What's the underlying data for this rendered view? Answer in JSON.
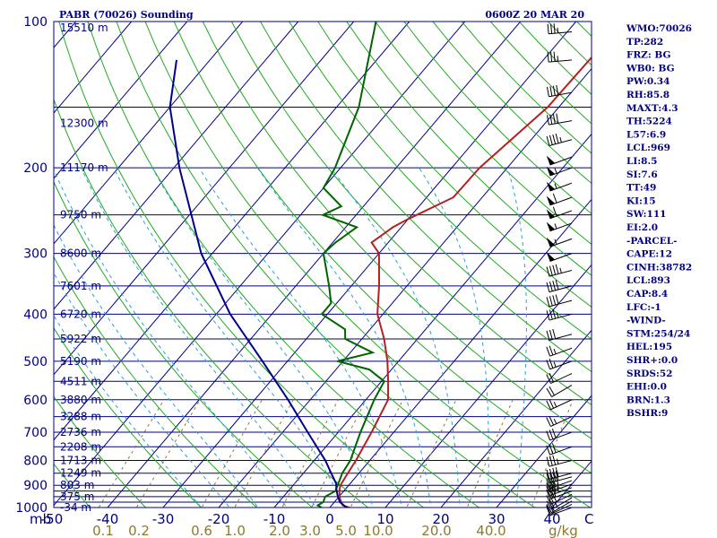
{
  "chart_data": {
    "type": "line",
    "chart_kind": "skew-T log-P sounding",
    "title": "PABR (70026) Sounding",
    "time": "0600Z 20 MAR 20",
    "y_unit": "mb",
    "x_unit": "°C",
    "mixing_ratio_unit": "g/kg",
    "pressure_range": [
      1000,
      100
    ],
    "temp_range_at_1000mb": [
      -50,
      50
    ],
    "pressure_ticks": [
      100,
      200,
      300,
      400,
      500,
      600,
      700,
      800,
      900,
      1000
    ],
    "temp_ticks": [
      -50,
      -40,
      -30,
      -20,
      -10,
      0,
      10,
      20,
      30,
      40
    ],
    "mixing_ratio_labels": [
      "0.1",
      "0.2",
      "0.6",
      "1.0",
      "2.0",
      "3.0",
      "5.0",
      "10.0",
      "20.0",
      "40.0"
    ],
    "mixing_ratio_values": [
      0.1,
      0.2,
      0.6,
      1.0,
      2.0,
      3.0,
      5.0,
      10.0,
      20.0,
      40.0
    ],
    "levels": [
      {
        "p": 103,
        "h": "15510 m"
      },
      {
        "p": 162,
        "h": "12300 m"
      },
      {
        "p": 200,
        "h": "11170 m"
      },
      {
        "p": 250,
        "h": "9750 m"
      },
      {
        "p": 300,
        "h": "8600 m"
      },
      {
        "p": 350,
        "h": "7601 m"
      },
      {
        "p": 400,
        "h": "6720 m"
      },
      {
        "p": 450,
        "h": "5922 m"
      },
      {
        "p": 500,
        "h": "5190 m"
      },
      {
        "p": 550,
        "h": "4511 m"
      },
      {
        "p": 600,
        "h": "3880 m"
      },
      {
        "p": 650,
        "h": "3288 m"
      },
      {
        "p": 700,
        "h": "2736 m"
      },
      {
        "p": 750,
        "h": "2208 m"
      },
      {
        "p": 800,
        "h": "1713 m"
      },
      {
        "p": 850,
        "h": "1249 m"
      },
      {
        "p": 900,
        "h": "803 m"
      },
      {
        "p": 950,
        "h": "375 m"
      },
      {
        "p": 1000,
        "h": "-34 m"
      }
    ],
    "series": [
      {
        "name": "Temperature",
        "color": "#b22222",
        "points": [
          [
            1005,
            4.0
          ],
          [
            1000,
            3.5
          ],
          [
            990,
            2.0
          ],
          [
            960,
            0.5
          ],
          [
            925,
            -0.8
          ],
          [
            900,
            -1.5
          ],
          [
            850,
            -2.0
          ],
          [
            800,
            -2.5
          ],
          [
            700,
            -4.0
          ],
          [
            600,
            -6.0
          ],
          [
            550,
            -8.8
          ],
          [
            500,
            -12.0
          ],
          [
            450,
            -16.0
          ],
          [
            400,
            -21.0
          ],
          [
            350,
            -25.0
          ],
          [
            300,
            -30.0
          ],
          [
            285,
            -33.0
          ],
          [
            265,
            -31.5
          ],
          [
            255,
            -30.0
          ],
          [
            230,
            -25.2
          ],
          [
            200,
            -25.0
          ],
          [
            150,
            -22.0
          ],
          [
            100,
            -21.5
          ]
        ]
      },
      {
        "name": "Dewpoint",
        "color": "#006400",
        "points": [
          [
            1000,
            -1.5
          ],
          [
            990,
            -2.5
          ],
          [
            975,
            -2.0
          ],
          [
            950,
            -2.5
          ],
          [
            925,
            -1.5
          ],
          [
            900,
            -2.0
          ],
          [
            850,
            -3.0
          ],
          [
            800,
            -3.5
          ],
          [
            700,
            -6.0
          ],
          [
            600,
            -8.5
          ],
          [
            550,
            -9.5
          ],
          [
            520,
            -14.0
          ],
          [
            500,
            -21.0
          ],
          [
            480,
            -16.0
          ],
          [
            450,
            -23.0
          ],
          [
            430,
            -24.5
          ],
          [
            400,
            -31.0
          ],
          [
            380,
            -31.0
          ],
          [
            350,
            -34.0
          ],
          [
            300,
            -40.0
          ],
          [
            285,
            -39.5
          ],
          [
            265,
            -38.0
          ],
          [
            250,
            -46.0
          ],
          [
            240,
            -44.0
          ],
          [
            220,
            -50.0
          ],
          [
            200,
            -51.0
          ],
          [
            150,
            -56.0
          ],
          [
            100,
            -66.0
          ]
        ]
      },
      {
        "name": "Parcel",
        "color": "#00008b",
        "points": [
          [
            1005,
            4.0
          ],
          [
            1000,
            3.0
          ],
          [
            975,
            1.0
          ],
          [
            950,
            -0.2
          ],
          [
            920,
            -1.5
          ],
          [
            893,
            -2.5
          ],
          [
            850,
            -5.0
          ],
          [
            800,
            -8.0
          ],
          [
            700,
            -15.5
          ],
          [
            600,
            -24.0
          ],
          [
            500,
            -34.5
          ],
          [
            400,
            -47.5
          ],
          [
            300,
            -62.0
          ],
          [
            200,
            -79.0
          ],
          [
            150,
            -90.0
          ],
          [
            120,
            -96.0
          ]
        ]
      }
    ],
    "wind_barbs": [
      {
        "p": 1000,
        "dir": 250,
        "spd": 10
      },
      {
        "p": 985,
        "dir": 245,
        "spd": 15
      },
      {
        "p": 970,
        "dir": 240,
        "spd": 20
      },
      {
        "p": 955,
        "dir": 240,
        "spd": 25
      },
      {
        "p": 940,
        "dir": 245,
        "spd": 30
      },
      {
        "p": 925,
        "dir": 250,
        "spd": 30
      },
      {
        "p": 910,
        "dir": 250,
        "spd": 35
      },
      {
        "p": 895,
        "dir": 250,
        "spd": 35
      },
      {
        "p": 880,
        "dir": 250,
        "spd": 40
      },
      {
        "p": 865,
        "dir": 255,
        "spd": 40
      },
      {
        "p": 850,
        "dir": 255,
        "spd": 40
      },
      {
        "p": 800,
        "dir": 255,
        "spd": 35
      },
      {
        "p": 750,
        "dir": 250,
        "spd": 30
      },
      {
        "p": 700,
        "dir": 250,
        "spd": 30
      },
      {
        "p": 650,
        "dir": 245,
        "spd": 25
      },
      {
        "p": 600,
        "dir": 245,
        "spd": 25
      },
      {
        "p": 560,
        "dir": 240,
        "spd": 20
      },
      {
        "p": 530,
        "dir": 245,
        "spd": 20
      },
      {
        "p": 500,
        "dir": 250,
        "spd": 25
      },
      {
        "p": 470,
        "dir": 250,
        "spd": 25
      },
      {
        "p": 440,
        "dir": 255,
        "spd": 30
      },
      {
        "p": 400,
        "dir": 255,
        "spd": 35
      },
      {
        "p": 375,
        "dir": 255,
        "spd": 40
      },
      {
        "p": 350,
        "dir": 255,
        "spd": 40
      },
      {
        "p": 325,
        "dir": 255,
        "spd": 45
      },
      {
        "p": 300,
        "dir": 250,
        "spd": 50
      },
      {
        "p": 280,
        "dir": 250,
        "spd": 55
      },
      {
        "p": 260,
        "dir": 250,
        "spd": 55
      },
      {
        "p": 245,
        "dir": 250,
        "spd": 60
      },
      {
        "p": 230,
        "dir": 250,
        "spd": 60
      },
      {
        "p": 215,
        "dir": 250,
        "spd": 55
      },
      {
        "p": 200,
        "dir": 250,
        "spd": 55
      },
      {
        "p": 190,
        "dir": 250,
        "spd": 50
      },
      {
        "p": 175,
        "dir": 255,
        "spd": 45
      },
      {
        "p": 160,
        "dir": 260,
        "spd": 40
      },
      {
        "p": 140,
        "dir": 260,
        "spd": 40
      },
      {
        "p": 120,
        "dir": 265,
        "spd": 35
      },
      {
        "p": 105,
        "dir": 265,
        "spd": 35
      }
    ]
  },
  "stats": [
    "WMO:70026",
    "TP:282",
    "FRZ: BG",
    "WB0: BG",
    "PW:0.34",
    "RH:85.8",
    "MAXT:4.3",
    "TH:5224",
    "L57:6.9",
    "LCL:969",
    "LI:8.5",
    "SI:7.6",
    "TT:49",
    "KI:15",
    "SW:111",
    "EI:2.0",
    "-PARCEL-",
    "CAPE:12",
    "CINH:38782",
    "LCL:893",
    "CAP:8.4",
    "LFC:-1",
    "-WIND-",
    "STM:254/24",
    "HEL:195",
    "SHR+:0.0",
    "SRDS:52",
    "EHI:0.0",
    "BRN:1.3",
    "BSHR:9"
  ],
  "colors": {
    "isobar": "#000080",
    "isotherm": "#00008b",
    "dry_adiabat": "#22aa22",
    "moist_adiabat": "#2a9fd6",
    "mixing_ratio": "#8b7a2e"
  }
}
